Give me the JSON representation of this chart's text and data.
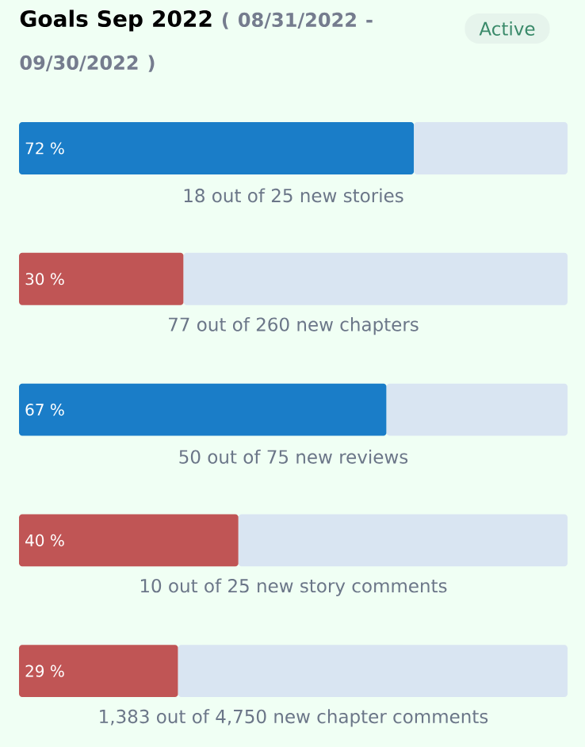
{
  "chart_data": {
    "type": "bar",
    "orientation": "horizontal",
    "stacked": true,
    "title": "Goals Sep 2022",
    "subtitle": "( 08/31/2022 - 09/30/2022 )",
    "annotations": [
      "Active"
    ],
    "categories": [
      "18 out of 25 new stories",
      "77 out of 260 new chapters",
      "50 out of 75 new reviews",
      "10 out of 25 new story comments",
      "1,383 out of 4,750 new chapter comments"
    ],
    "xlim": [
      0,
      100
    ],
    "series": [
      {
        "colors": [
          "#1a7dc8",
          "#c05555",
          "#1a7dc8",
          "#c05555",
          "#c05555"
        ],
        "values": [
          72,
          30,
          67,
          40,
          29
        ],
        "value_labels": [
          "72  %",
          "30  %",
          "67  %",
          "40  %",
          "29  %"
        ]
      },
      {
        "color": "#d9e5f2",
        "values": [
          28,
          70,
          33,
          60,
          71
        ]
      }
    ]
  }
}
